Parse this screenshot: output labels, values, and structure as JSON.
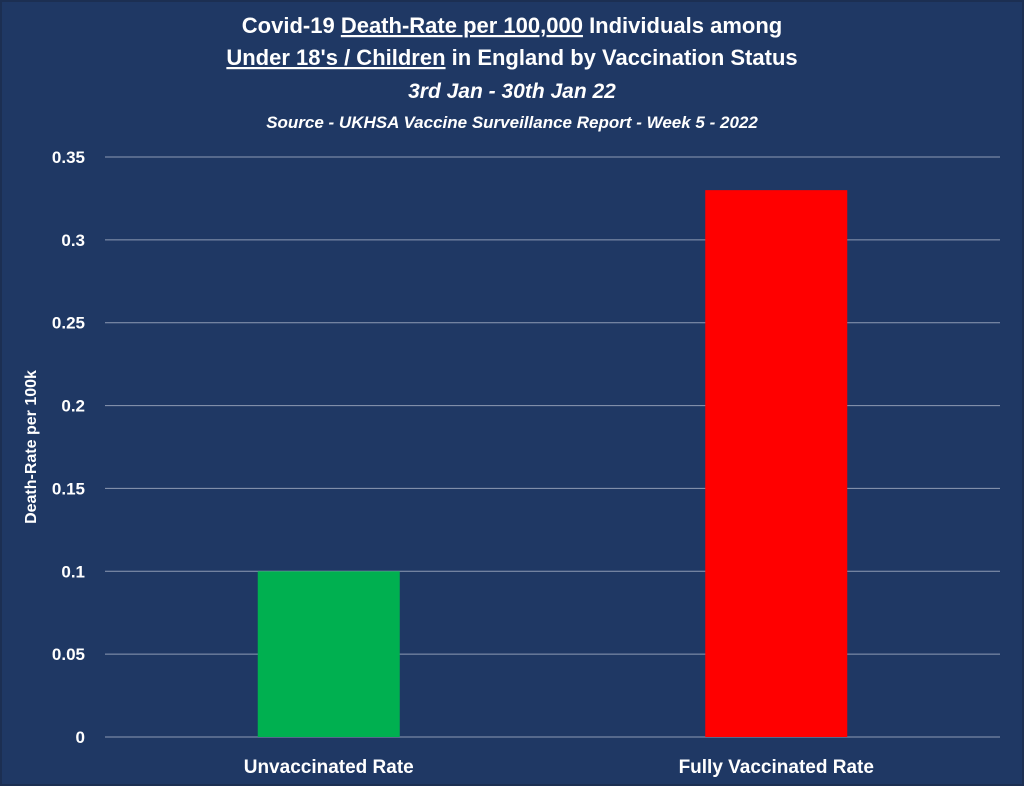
{
  "chart_data": {
    "type": "bar",
    "title_line1": {
      "before": "Covid-19 ",
      "underlined": "Death-Rate per 100,000",
      "after": " Individuals among"
    },
    "title_line2": {
      "underlined": "Under 18's / Children",
      "after": " in England by Vaccination Status"
    },
    "subtitle": "3rd Jan - 30th Jan 22",
    "source": "Source - UKHSA Vaccine Surveillance Report - Week 5 - 2022",
    "xlabel": "",
    "ylabel": "Death-Rate per 100k",
    "ylim": [
      0,
      0.35
    ],
    "yticks": [
      0,
      0.05,
      0.1,
      0.15,
      0.2,
      0.25,
      0.3,
      0.35
    ],
    "ytick_labels": [
      "0",
      "0.05",
      "0.1",
      "0.15",
      "0.2",
      "0.25",
      "0.3",
      "0.35"
    ],
    "categories": [
      "Unvaccinated Rate",
      "Fully Vaccinated Rate"
    ],
    "values": [
      0.1,
      0.33
    ],
    "bar_colors": [
      "#00b050",
      "#ff0000"
    ],
    "grid": true,
    "legend": "none"
  },
  "colors": {
    "background": "#1f3864",
    "frame": "#1c2f52",
    "text": "#ffffff",
    "gridline": "#8e9ab3"
  }
}
